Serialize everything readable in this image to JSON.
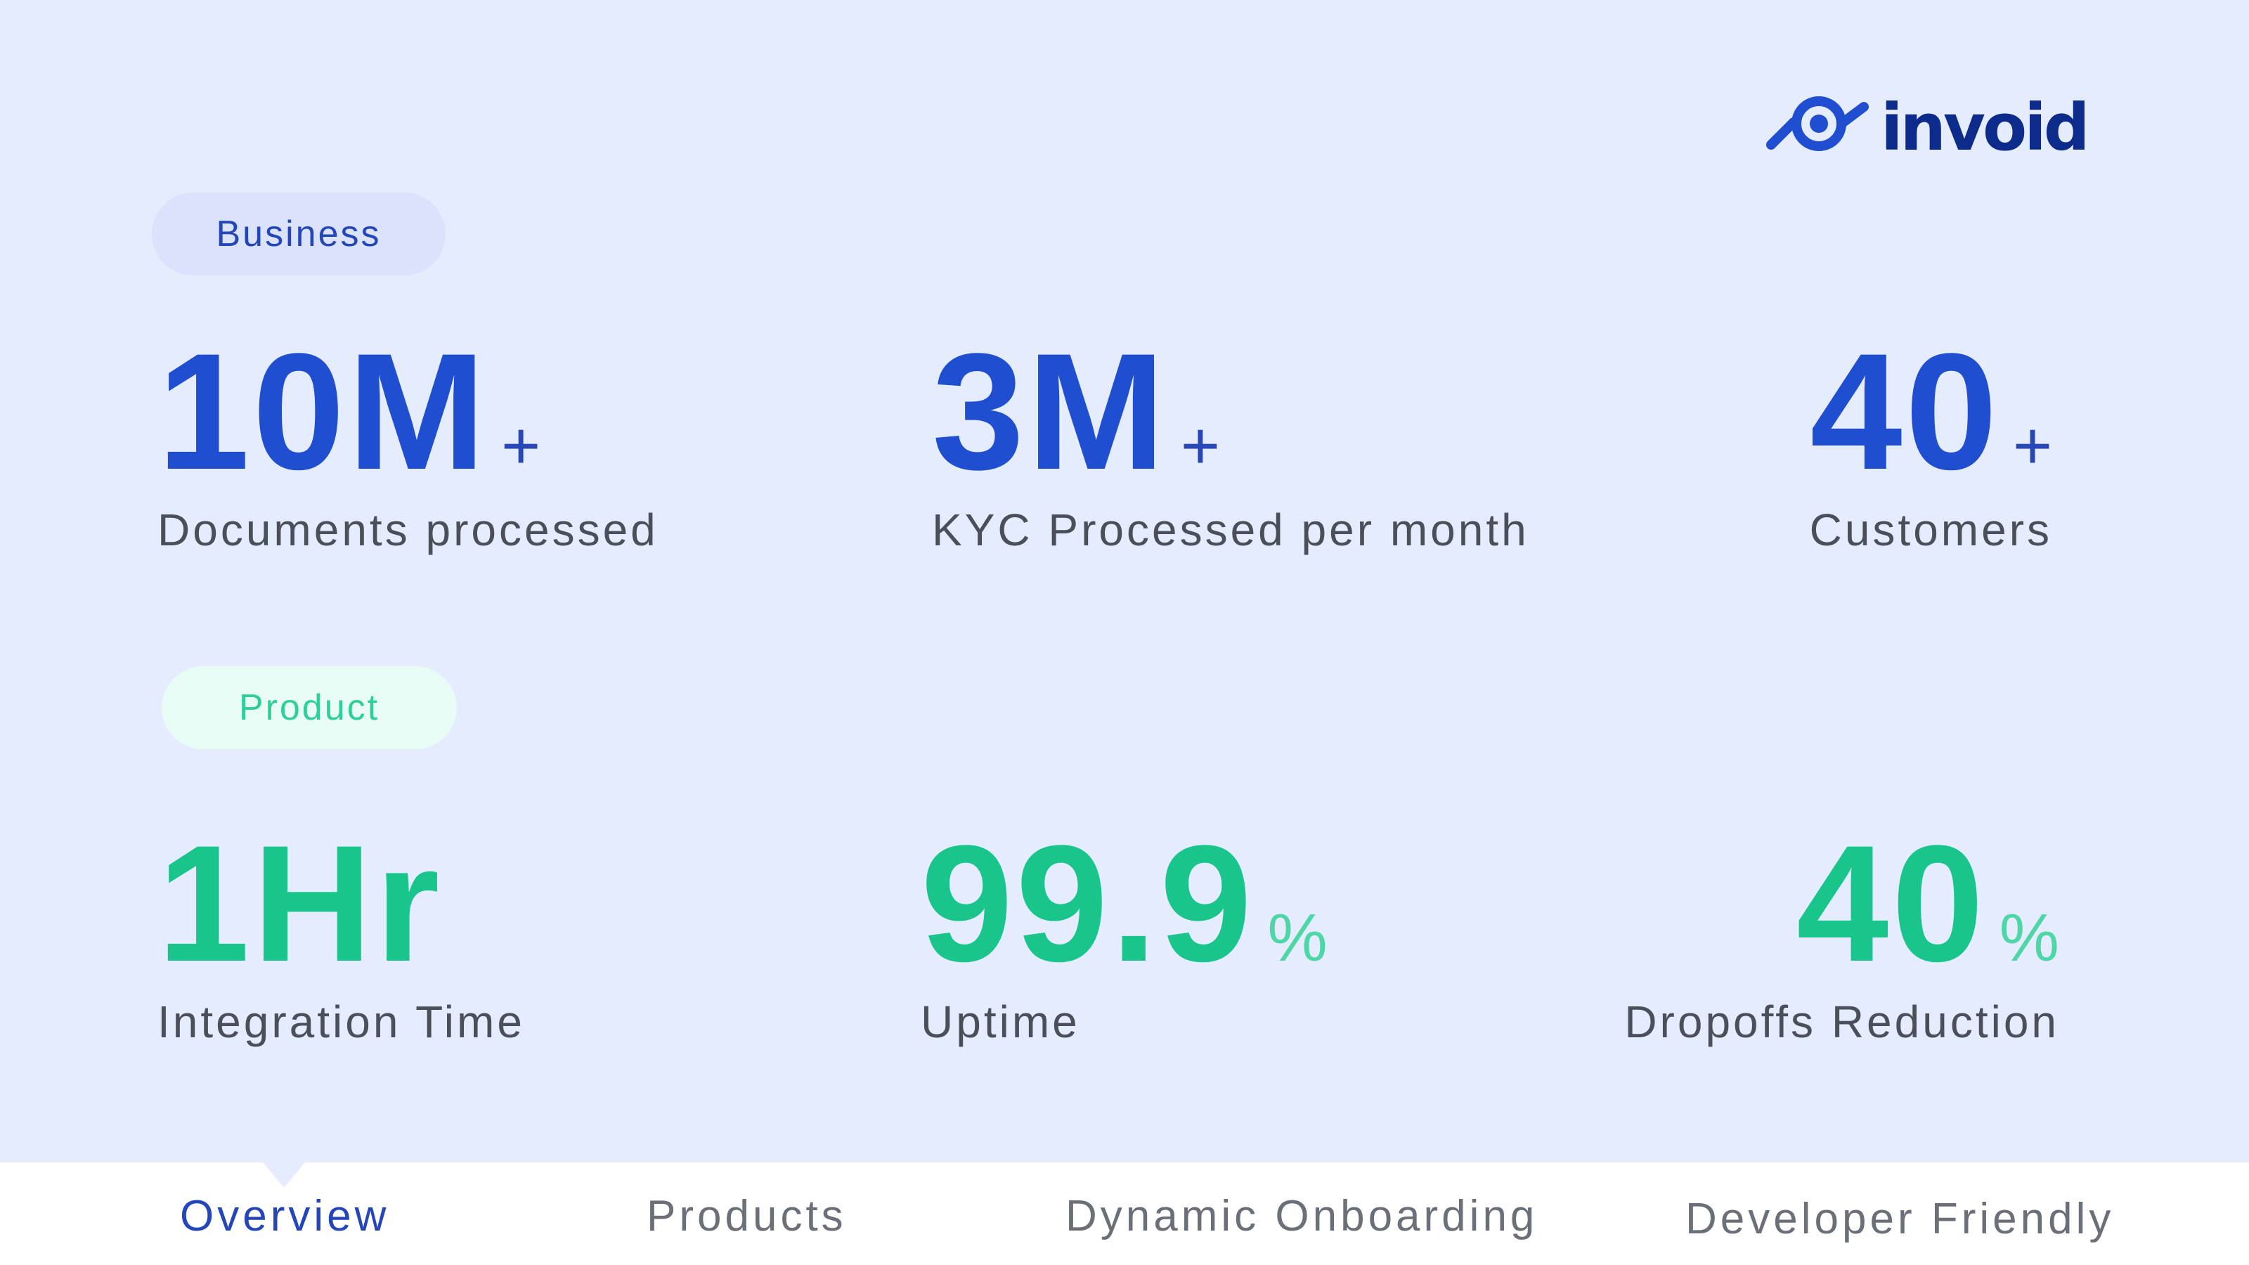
{
  "brand": {
    "name": "invoid",
    "logo_color": "#1f4ed0"
  },
  "sections": {
    "business": {
      "label": "Business",
      "stats": [
        {
          "value": "10M",
          "suffix": "+",
          "label": "Documents processed"
        },
        {
          "value": "3M",
          "suffix": "+",
          "label": "KYC Processed per month"
        },
        {
          "value": "40",
          "suffix": "+",
          "label": "Customers"
        }
      ]
    },
    "product": {
      "label": "Product",
      "stats": [
        {
          "value": "1Hr",
          "suffix": "",
          "label": "Integration Time"
        },
        {
          "value": "99.9",
          "suffix": "%",
          "label": "Uptime"
        },
        {
          "value": "40",
          "suffix": "%",
          "label": "Dropoffs Reduction"
        }
      ]
    }
  },
  "nav": {
    "active_index": 0,
    "items": [
      {
        "label": "Overview"
      },
      {
        "label": "Products"
      },
      {
        "label": "Dynamic Onboarding"
      },
      {
        "label": "Developer Friendly"
      }
    ]
  },
  "colors": {
    "panel_background": "#e4ecfd",
    "business_accent": "#1f4ed0",
    "product_accent": "#19c58b"
  }
}
